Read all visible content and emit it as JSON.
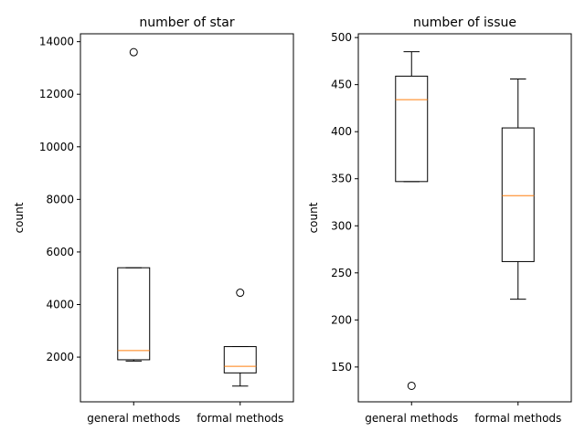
{
  "chart_data": [
    {
      "type": "boxplot",
      "title": "number of star",
      "xlabel": "",
      "ylabel": "count",
      "ylim": [
        300,
        14300
      ],
      "yticks": [
        2000,
        4000,
        6000,
        8000,
        10000,
        12000,
        14000
      ],
      "yticks_text": [
        "2000",
        "4000",
        "6000",
        "8000",
        "10000",
        "12000",
        "14000"
      ],
      "categories": [
        "general methods",
        "formal methods"
      ],
      "boxes": [
        {
          "whislo": 1850,
          "q1": 1900,
          "med": 2250,
          "q3": 5400,
          "whishi": 5400,
          "fliers": [
            13600
          ]
        },
        {
          "whislo": 900,
          "q1": 1400,
          "med": 1650,
          "q3": 2400,
          "whishi": 2400,
          "fliers": [
            4450
          ]
        }
      ],
      "grid": false,
      "colors": {
        "box": "#000000",
        "median": "#ff7f0e"
      }
    },
    {
      "type": "boxplot",
      "title": "number of issue",
      "xlabel": "",
      "ylabel": "count",
      "ylim": [
        113,
        504
      ],
      "yticks": [
        150,
        200,
        250,
        300,
        350,
        400,
        450,
        500
      ],
      "yticks_text": [
        "150",
        "200",
        "250",
        "300",
        "350",
        "400",
        "450",
        "500"
      ],
      "categories": [
        "general methods",
        "formal methods"
      ],
      "boxes": [
        {
          "whislo": 347,
          "q1": 347,
          "med": 434,
          "q3": 459,
          "whishi": 485,
          "fliers": [
            130
          ]
        },
        {
          "whislo": 222,
          "q1": 262,
          "med": 332,
          "q3": 404,
          "whishi": 456,
          "fliers": []
        }
      ],
      "grid": false,
      "colors": {
        "box": "#000000",
        "median": "#ff7f0e"
      }
    }
  ]
}
